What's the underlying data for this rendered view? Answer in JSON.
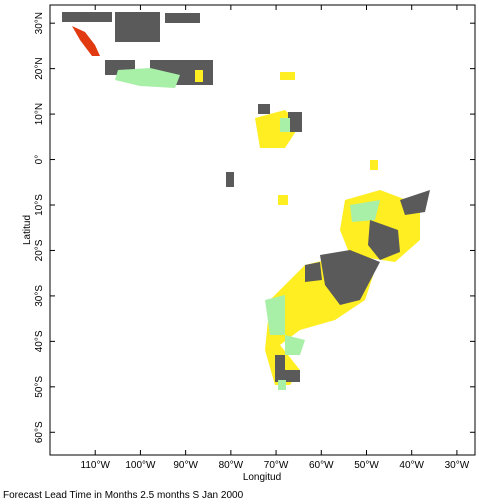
{
  "chart_data": {
    "type": "map",
    "xlabel": "Longitud",
    "ylabel": "Latitud",
    "footer": "Forecast Lead Time in Months 2.5 months S Jan 2000",
    "xlim": [
      -120,
      -26
    ],
    "ylim": [
      -65,
      34
    ],
    "xticks": [
      {
        "value": -110,
        "label": "110°W"
      },
      {
        "value": -100,
        "label": "100°W"
      },
      {
        "value": -90,
        "label": "90°W"
      },
      {
        "value": -80,
        "label": "80°W"
      },
      {
        "value": -70,
        "label": "70°W"
      },
      {
        "value": -60,
        "label": "60°W"
      },
      {
        "value": -50,
        "label": "50°W"
      },
      {
        "value": -40,
        "label": "40°W"
      },
      {
        "value": -30,
        "label": "30°W"
      }
    ],
    "yticks": [
      {
        "value": 30,
        "label": "30°N"
      },
      {
        "value": 20,
        "label": "20°N"
      },
      {
        "value": 10,
        "label": "10°N"
      },
      {
        "value": 0,
        "label": "0°"
      },
      {
        "value": -10,
        "label": "10°S"
      },
      {
        "value": -20,
        "label": "20°S"
      },
      {
        "value": -30,
        "label": "30°S"
      },
      {
        "value": -40,
        "label": "40°S"
      },
      {
        "value": -50,
        "label": "50°S"
      },
      {
        "value": -60,
        "label": "60°S"
      }
    ]
  }
}
